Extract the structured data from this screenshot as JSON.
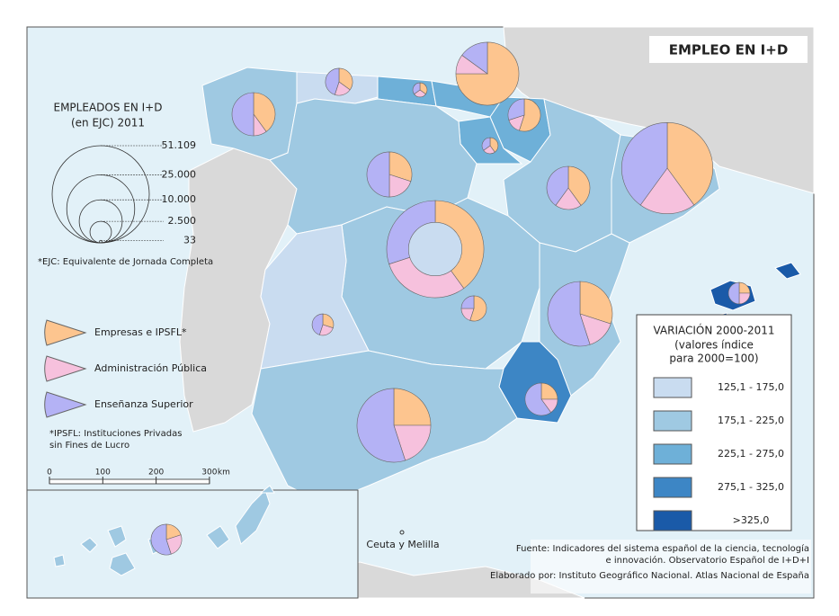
{
  "title": "EMPLEO EN I+D",
  "size_legend": {
    "title": "EMPLEADOS EN I+D",
    "subtitle": "(en EJC) 2011",
    "note": "*EJC: Equivalente de Jornada Completa",
    "ticks": [
      {
        "value": 51109,
        "label": "51.109"
      },
      {
        "value": 25000,
        "label": "25.000"
      },
      {
        "value": 10000,
        "label": "10.000"
      },
      {
        "value": 2500,
        "label": "2.500"
      },
      33
    ]
  },
  "sectors": [
    {
      "name": "Empresas e IPSFL*",
      "color": "#fdc58f"
    },
    {
      "name": "Administración Pública",
      "color": "#f6c1dd"
    },
    {
      "name": "Enseñanza Superior",
      "color": "#b4b2f5"
    }
  ],
  "sector_note": [
    "*IPSFL: Instituciones Privadas",
    "sin Fines de Lucro"
  ],
  "classes": {
    "title": "VARIACIÓN 2000-2011",
    "subtitle": [
      "(valores índice",
      "para 2000=100)"
    ],
    "items": [
      {
        "label": "125,1 - 175,0",
        "color": "#c9dcf0"
      },
      {
        "label": "175,1 - 225,0",
        "color": "#9fc9e2"
      },
      {
        "label": "225,1 - 275,0",
        "color": "#6eb0d8"
      },
      {
        "label": "275,1 - 325,0",
        "color": "#3d86c5"
      },
      {
        "label": ">325,0",
        "color": "#1a5aa8"
      }
    ]
  },
  "scale": {
    "ticks": [
      0,
      100,
      200,
      300
    ],
    "unit": "km"
  },
  "ceuta": "Ceuta y Melilla",
  "source": [
    "Fuente: Indicadores del sistema español de la ciencia, tecnología",
    "e innovación. Observatorio Español de I+D+I",
    "Elaborado por: Instituto Geográfico Nacional. Atlas Nacional de España"
  ],
  "pies": [
    {
      "total": 10100,
      "shares": [
        40,
        10,
        50
      ]
    },
    {
      "total": 4000,
      "shares": [
        35,
        20,
        45
      ]
    },
    {
      "total": 1100,
      "shares": [
        35,
        30,
        35
      ]
    },
    {
      "total": 21500,
      "shares": [
        75,
        10,
        15
      ]
    },
    {
      "total": 5700,
      "shares": [
        55,
        15,
        30
      ]
    },
    {
      "total": 1400,
      "shares": [
        40,
        25,
        35
      ]
    },
    {
      "total": 11000,
      "shares": [
        30,
        20,
        50
      ]
    },
    {
      "total": 10100,
      "shares": [
        40,
        20,
        40
      ]
    },
    {
      "total": 45000,
      "shares": [
        40,
        20,
        40
      ]
    },
    {
      "total": 51109,
      "shares": [
        40,
        30,
        30
      ]
    },
    {
      "total": 2500,
      "shares": [
        30,
        25,
        45
      ]
    },
    {
      "total": 3450,
      "shares": [
        55,
        20,
        25
      ]
    },
    {
      "total": 22700,
      "shares": [
        30,
        15,
        55
      ]
    },
    {
      "total": 5700,
      "shares": [
        25,
        15,
        60
      ]
    },
    {
      "total": 29500,
      "shares": [
        25,
        20,
        55
      ]
    },
    {
      "total": 2500,
      "shares": [
        25,
        25,
        50
      ]
    },
    {
      "total": 5100,
      "shares": [
        20,
        25,
        55
      ]
    }
  ]
}
